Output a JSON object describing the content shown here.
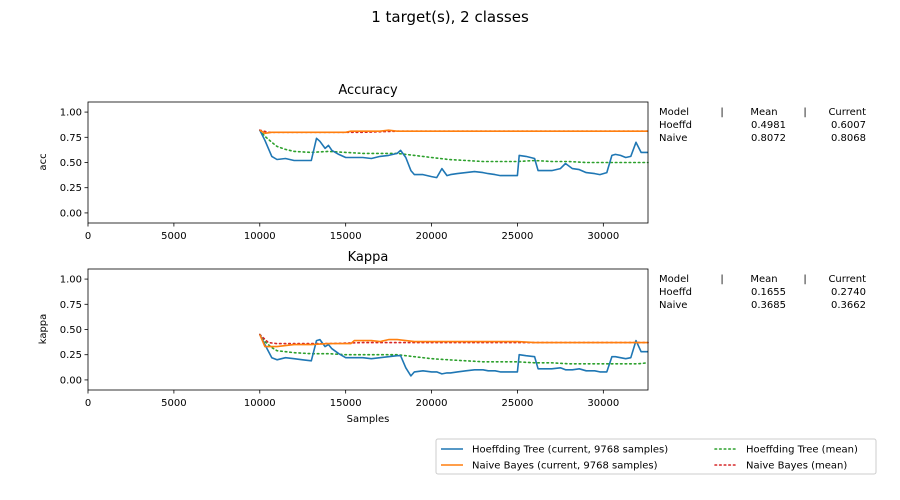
{
  "figure": {
    "suptitle": "1 target(s), 2 classes"
  },
  "colors": {
    "hoeffding_current": "#1f77b4",
    "naive_current": "#ff7f0e",
    "hoeffding_mean": "#2ca02c",
    "naive_mean": "#d62728"
  },
  "chart_data": [
    {
      "type": "line",
      "title": "Accuracy",
      "xlabel": "",
      "ylabel": "acc",
      "xlim": [
        0,
        32600
      ],
      "ylim": [
        -0.1,
        1.1
      ],
      "xticks": [
        0,
        5000,
        10000,
        15000,
        20000,
        25000,
        30000
      ],
      "xtick_labels": [
        "0",
        "5000",
        "10000",
        "15000",
        "20000",
        "25000",
        "30000"
      ],
      "yticks": [
        0.0,
        0.25,
        0.5,
        0.75,
        1.0
      ],
      "ytick_labels": [
        "0.00",
        "0.25",
        "0.50",
        "0.75",
        "1.00"
      ],
      "stats_table": {
        "header": [
          "Model",
          "|",
          "Mean",
          "|",
          "Current"
        ],
        "rows": [
          [
            "Hoeffd",
            "0.4981",
            "0.6007"
          ],
          [
            "Naive",
            "0.8072",
            "0.8068"
          ]
        ]
      },
      "series": [
        {
          "name": "Hoeffding Tree  (current, 9768 samples)",
          "style": "solid",
          "color_key": "hoeffding_current",
          "x": [
            10000,
            10300,
            10700,
            11000,
            11500,
            12000,
            12500,
            13000,
            13300,
            13500,
            13800,
            14000,
            14200,
            14600,
            15000,
            15400,
            16000,
            16500,
            17000,
            17500,
            18000,
            18200,
            18500,
            18800,
            19000,
            19500,
            20000,
            20300,
            20600,
            20900,
            21100,
            21500,
            22000,
            22500,
            23000,
            23300,
            23700,
            24000,
            24500,
            25000,
            25100,
            25500,
            26000,
            26200,
            27000,
            27500,
            27800,
            28200,
            28600,
            29000,
            29500,
            29800,
            30200,
            30500,
            30700,
            31000,
            31300,
            31600,
            31900,
            32200,
            32600
          ],
          "y": [
            0.82,
            0.72,
            0.56,
            0.53,
            0.54,
            0.52,
            0.52,
            0.52,
            0.74,
            0.71,
            0.64,
            0.67,
            0.62,
            0.58,
            0.55,
            0.55,
            0.55,
            0.54,
            0.56,
            0.57,
            0.59,
            0.62,
            0.55,
            0.42,
            0.38,
            0.38,
            0.36,
            0.35,
            0.44,
            0.37,
            0.38,
            0.39,
            0.4,
            0.41,
            0.4,
            0.39,
            0.38,
            0.37,
            0.37,
            0.37,
            0.57,
            0.56,
            0.54,
            0.42,
            0.42,
            0.44,
            0.49,
            0.44,
            0.43,
            0.4,
            0.39,
            0.38,
            0.4,
            0.57,
            0.58,
            0.57,
            0.55,
            0.56,
            0.7,
            0.6,
            0.6
          ]
        },
        {
          "name": "Naive Bayes  (current, 9768 samples)",
          "style": "solid",
          "color_key": "naive_current",
          "x": [
            10000,
            10300,
            10700,
            11000,
            12000,
            13000,
            14000,
            15000,
            15300,
            16000,
            17000,
            17500,
            18000,
            19000,
            20000,
            21000,
            22000,
            23000,
            24000,
            25000,
            26000,
            27000,
            28000,
            29000,
            30000,
            31000,
            32000,
            32600
          ],
          "y": [
            0.82,
            0.79,
            0.8,
            0.8,
            0.8,
            0.8,
            0.8,
            0.8,
            0.81,
            0.81,
            0.81,
            0.82,
            0.81,
            0.81,
            0.81,
            0.81,
            0.81,
            0.81,
            0.81,
            0.81,
            0.81,
            0.81,
            0.81,
            0.81,
            0.81,
            0.81,
            0.81,
            0.81
          ]
        },
        {
          "name": "Hoeffding Tree (mean)",
          "style": "dotted",
          "color_key": "hoeffding_mean",
          "x": [
            10000,
            10300,
            10700,
            11000,
            11500,
            12000,
            13000,
            14000,
            15000,
            16000,
            17000,
            18000,
            19000,
            20000,
            21000,
            22000,
            23000,
            24000,
            25000,
            26000,
            27000,
            28000,
            29000,
            30000,
            31000,
            32000,
            32600
          ],
          "y": [
            0.82,
            0.76,
            0.7,
            0.66,
            0.63,
            0.61,
            0.6,
            0.61,
            0.6,
            0.59,
            0.59,
            0.59,
            0.57,
            0.55,
            0.53,
            0.52,
            0.51,
            0.51,
            0.51,
            0.52,
            0.51,
            0.51,
            0.5,
            0.5,
            0.5,
            0.5,
            0.5
          ]
        },
        {
          "name": "Naive Bayes (mean)",
          "style": "dotted",
          "color_key": "naive_mean",
          "x": [
            10000,
            10500,
            11000,
            12000,
            14000,
            16000,
            18000,
            20000,
            22000,
            24000,
            26000,
            28000,
            30000,
            32600
          ],
          "y": [
            0.82,
            0.8,
            0.8,
            0.8,
            0.8,
            0.8,
            0.81,
            0.81,
            0.81,
            0.81,
            0.81,
            0.81,
            0.81,
            0.81
          ]
        }
      ]
    },
    {
      "type": "line",
      "title": "Kappa",
      "xlabel": "Samples",
      "ylabel": "kappa",
      "xlim": [
        0,
        32600
      ],
      "ylim": [
        -0.1,
        1.1
      ],
      "xticks": [
        0,
        5000,
        10000,
        15000,
        20000,
        25000,
        30000
      ],
      "xtick_labels": [
        "0",
        "5000",
        "10000",
        "15000",
        "20000",
        "25000",
        "30000"
      ],
      "yticks": [
        0.0,
        0.25,
        0.5,
        0.75,
        1.0
      ],
      "ytick_labels": [
        "0.00",
        "0.25",
        "0.50",
        "0.75",
        "1.00"
      ],
      "stats_table": {
        "header": [
          "Model",
          "|",
          "Mean",
          "|",
          "Current"
        ],
        "rows": [
          [
            "Hoeffd",
            "0.1655",
            "0.2740"
          ],
          [
            "Naive",
            "0.3685",
            "0.3662"
          ]
        ]
      },
      "series": [
        {
          "name": "Hoeffding Tree  (current, 9768 samples)",
          "style": "solid",
          "color_key": "hoeffding_current",
          "x": [
            10000,
            10300,
            10700,
            11000,
            11500,
            12000,
            12500,
            13000,
            13300,
            13500,
            13800,
            14000,
            14200,
            14600,
            15000,
            15400,
            16000,
            16500,
            17000,
            17500,
            18000,
            18200,
            18500,
            18800,
            19000,
            19500,
            20000,
            20300,
            20600,
            20900,
            21100,
            21500,
            22000,
            22500,
            23000,
            23300,
            23700,
            24000,
            24500,
            25000,
            25100,
            25500,
            26000,
            26200,
            27000,
            27500,
            27800,
            28200,
            28600,
            29000,
            29500,
            29800,
            30200,
            30500,
            30700,
            31000,
            31300,
            31600,
            31900,
            32200,
            32600
          ],
          "y": [
            0.45,
            0.35,
            0.22,
            0.2,
            0.22,
            0.21,
            0.2,
            0.19,
            0.39,
            0.4,
            0.33,
            0.35,
            0.31,
            0.26,
            0.22,
            0.22,
            0.22,
            0.21,
            0.22,
            0.23,
            0.24,
            0.24,
            0.12,
            0.04,
            0.08,
            0.09,
            0.08,
            0.08,
            0.06,
            0.07,
            0.07,
            0.08,
            0.09,
            0.1,
            0.1,
            0.09,
            0.09,
            0.08,
            0.08,
            0.08,
            0.25,
            0.24,
            0.23,
            0.11,
            0.11,
            0.12,
            0.1,
            0.1,
            0.11,
            0.09,
            0.09,
            0.08,
            0.08,
            0.23,
            0.23,
            0.22,
            0.21,
            0.22,
            0.39,
            0.28,
            0.28
          ]
        },
        {
          "name": "Naive Bayes  (current, 9768 samples)",
          "style": "solid",
          "color_key": "naive_current",
          "x": [
            10000,
            10300,
            10700,
            11000,
            11500,
            12000,
            13000,
            14000,
            15000,
            15300,
            15500,
            16000,
            16500,
            17000,
            17500,
            18000,
            18500,
            19000,
            20000,
            21000,
            22000,
            23000,
            24000,
            25000,
            26000,
            27000,
            28000,
            29000,
            30000,
            31000,
            32000,
            32600
          ],
          "y": [
            0.45,
            0.33,
            0.33,
            0.33,
            0.34,
            0.35,
            0.35,
            0.36,
            0.36,
            0.36,
            0.39,
            0.39,
            0.39,
            0.38,
            0.4,
            0.4,
            0.39,
            0.38,
            0.38,
            0.38,
            0.38,
            0.38,
            0.38,
            0.38,
            0.37,
            0.37,
            0.37,
            0.37,
            0.37,
            0.37,
            0.37,
            0.37
          ]
        },
        {
          "name": "Hoeffding Tree (mean)",
          "style": "dotted",
          "color_key": "hoeffding_mean",
          "x": [
            10000,
            10300,
            10700,
            11000,
            11500,
            12000,
            13000,
            14000,
            15000,
            16000,
            17000,
            18000,
            19000,
            20000,
            21000,
            22000,
            23000,
            24000,
            25000,
            26000,
            27000,
            28000,
            29000,
            30000,
            31000,
            32000,
            32600
          ],
          "y": [
            0.45,
            0.38,
            0.32,
            0.29,
            0.28,
            0.27,
            0.26,
            0.26,
            0.25,
            0.25,
            0.25,
            0.25,
            0.23,
            0.21,
            0.2,
            0.19,
            0.18,
            0.18,
            0.18,
            0.17,
            0.17,
            0.16,
            0.16,
            0.16,
            0.16,
            0.16,
            0.17
          ]
        },
        {
          "name": "Naive Bayes (mean)",
          "style": "dotted",
          "color_key": "naive_mean",
          "x": [
            10000,
            10500,
            11000,
            12000,
            13000,
            14000,
            16000,
            18000,
            20000,
            22000,
            24000,
            26000,
            28000,
            30000,
            32600
          ],
          "y": [
            0.45,
            0.37,
            0.36,
            0.36,
            0.36,
            0.36,
            0.37,
            0.37,
            0.37,
            0.37,
            0.37,
            0.37,
            0.37,
            0.37,
            0.37
          ]
        }
      ]
    }
  ],
  "legend": {
    "entries": [
      {
        "label": "Hoeffding Tree  (current, 9768 samples)",
        "style": "solid",
        "color_key": "hoeffding_current"
      },
      {
        "label": "Naive Bayes  (current, 9768 samples)",
        "style": "solid",
        "color_key": "naive_current"
      },
      {
        "label": "Hoeffding Tree (mean)",
        "style": "dotted",
        "color_key": "hoeffding_mean"
      },
      {
        "label": "Naive Bayes (mean)",
        "style": "dotted",
        "color_key": "naive_mean"
      }
    ]
  }
}
